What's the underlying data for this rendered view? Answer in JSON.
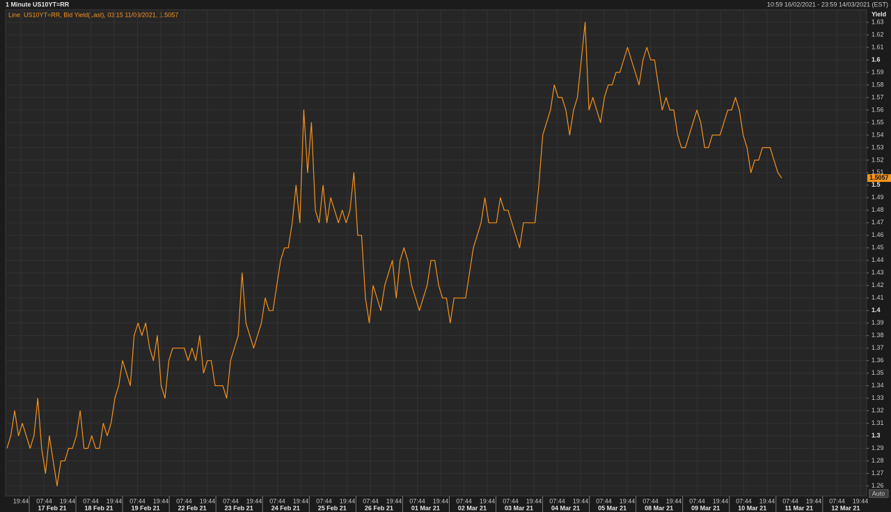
{
  "chart_data": {
    "type": "line",
    "title": "1 Minute US10YT=RR",
    "range_label": "10:59 16/02/2021 - 23:59 14/03/2021 (EST)",
    "legend": "Line, US10YT=RR, Bid Yield(Last), 03:15 11/03/2021, 1.5057",
    "y_axis_label": "Yield",
    "auto_button": "Auto",
    "ylim": [
      1.252,
      1.64
    ],
    "yticks": [
      1.26,
      1.27,
      1.28,
      1.29,
      1.3,
      1.31,
      1.32,
      1.33,
      1.34,
      1.35,
      1.36,
      1.37,
      1.38,
      1.39,
      1.4,
      1.41,
      1.42,
      1.43,
      1.44,
      1.45,
      1.46,
      1.47,
      1.48,
      1.49,
      1.5,
      1.51,
      1.52,
      1.53,
      1.54,
      1.55,
      1.56,
      1.57,
      1.58,
      1.59,
      1.6,
      1.61,
      1.62,
      1.63
    ],
    "grid": true,
    "time_labels": [
      "19:44",
      "07:44",
      "19:44",
      "07:44",
      "19:44",
      "07:44",
      "19:44",
      "07:44",
      "19:44",
      "07:44",
      "19:44",
      "07:44",
      "19:44",
      "07:44",
      "19:44",
      "07:44",
      "19:44",
      "07:44",
      "19:44",
      "07:44",
      "19:44",
      "07:44",
      "19:44",
      "07:44",
      "19:44",
      "07:44",
      "19:44",
      "07:44",
      "19:44",
      "07:44",
      "19:44",
      "07:44",
      "19:44",
      "07:44",
      "19:44",
      "07:44",
      "19:44"
    ],
    "date_labels": [
      "17 Feb 21",
      "18 Feb 21",
      "19 Feb 21",
      "22 Feb 21",
      "23 Feb 21",
      "24 Feb 21",
      "25 Feb 21",
      "26 Feb 21",
      "01 Mar 21",
      "02 Mar 21",
      "03 Mar 21",
      "04 Mar 21",
      "05 Mar 21",
      "08 Mar 21",
      "09 Mar 21",
      "10 Mar 21",
      "11 Mar 21",
      "12 Mar 21"
    ],
    "series": [
      {
        "name": "US10YT=RR",
        "color": "#f7941d",
        "values": [
          1.29,
          1.3,
          1.32,
          1.3,
          1.31,
          1.3,
          1.29,
          1.3,
          1.33,
          1.29,
          1.27,
          1.3,
          1.28,
          1.26,
          1.28,
          1.28,
          1.29,
          1.29,
          1.3,
          1.32,
          1.29,
          1.29,
          1.3,
          1.29,
          1.29,
          1.31,
          1.3,
          1.31,
          1.33,
          1.34,
          1.36,
          1.35,
          1.34,
          1.38,
          1.39,
          1.38,
          1.39,
          1.37,
          1.36,
          1.38,
          1.34,
          1.33,
          1.36,
          1.37,
          1.37,
          1.37,
          1.37,
          1.36,
          1.37,
          1.36,
          1.38,
          1.35,
          1.36,
          1.36,
          1.34,
          1.34,
          1.34,
          1.33,
          1.36,
          1.37,
          1.38,
          1.43,
          1.39,
          1.38,
          1.37,
          1.38,
          1.39,
          1.41,
          1.4,
          1.4,
          1.42,
          1.44,
          1.45,
          1.45,
          1.47,
          1.5,
          1.47,
          1.56,
          1.51,
          1.55,
          1.48,
          1.47,
          1.5,
          1.47,
          1.49,
          1.48,
          1.47,
          1.48,
          1.47,
          1.48,
          1.51,
          1.46,
          1.46,
          1.41,
          1.39,
          1.42,
          1.41,
          1.4,
          1.42,
          1.43,
          1.44,
          1.41,
          1.44,
          1.45,
          1.44,
          1.42,
          1.41,
          1.4,
          1.41,
          1.42,
          1.44,
          1.44,
          1.42,
          1.41,
          1.41,
          1.39,
          1.41,
          1.41,
          1.41,
          1.41,
          1.43,
          1.45,
          1.46,
          1.47,
          1.49,
          1.47,
          1.47,
          1.47,
          1.49,
          1.48,
          1.48,
          1.47,
          1.46,
          1.45,
          1.47,
          1.47,
          1.47,
          1.47,
          1.5,
          1.54,
          1.55,
          1.56,
          1.58,
          1.57,
          1.57,
          1.56,
          1.54,
          1.56,
          1.57,
          1.6,
          1.63,
          1.56,
          1.57,
          1.56,
          1.55,
          1.57,
          1.58,
          1.58,
          1.59,
          1.59,
          1.6,
          1.61,
          1.6,
          1.59,
          1.58,
          1.6,
          1.61,
          1.6,
          1.6,
          1.58,
          1.56,
          1.57,
          1.56,
          1.56,
          1.54,
          1.53,
          1.53,
          1.54,
          1.55,
          1.56,
          1.55,
          1.53,
          1.53,
          1.54,
          1.54,
          1.54,
          1.55,
          1.56,
          1.56,
          1.57,
          1.56,
          1.54,
          1.53,
          1.51,
          1.52,
          1.52,
          1.53,
          1.53,
          1.53,
          1.52,
          1.51,
          1.5057
        ]
      }
    ]
  }
}
